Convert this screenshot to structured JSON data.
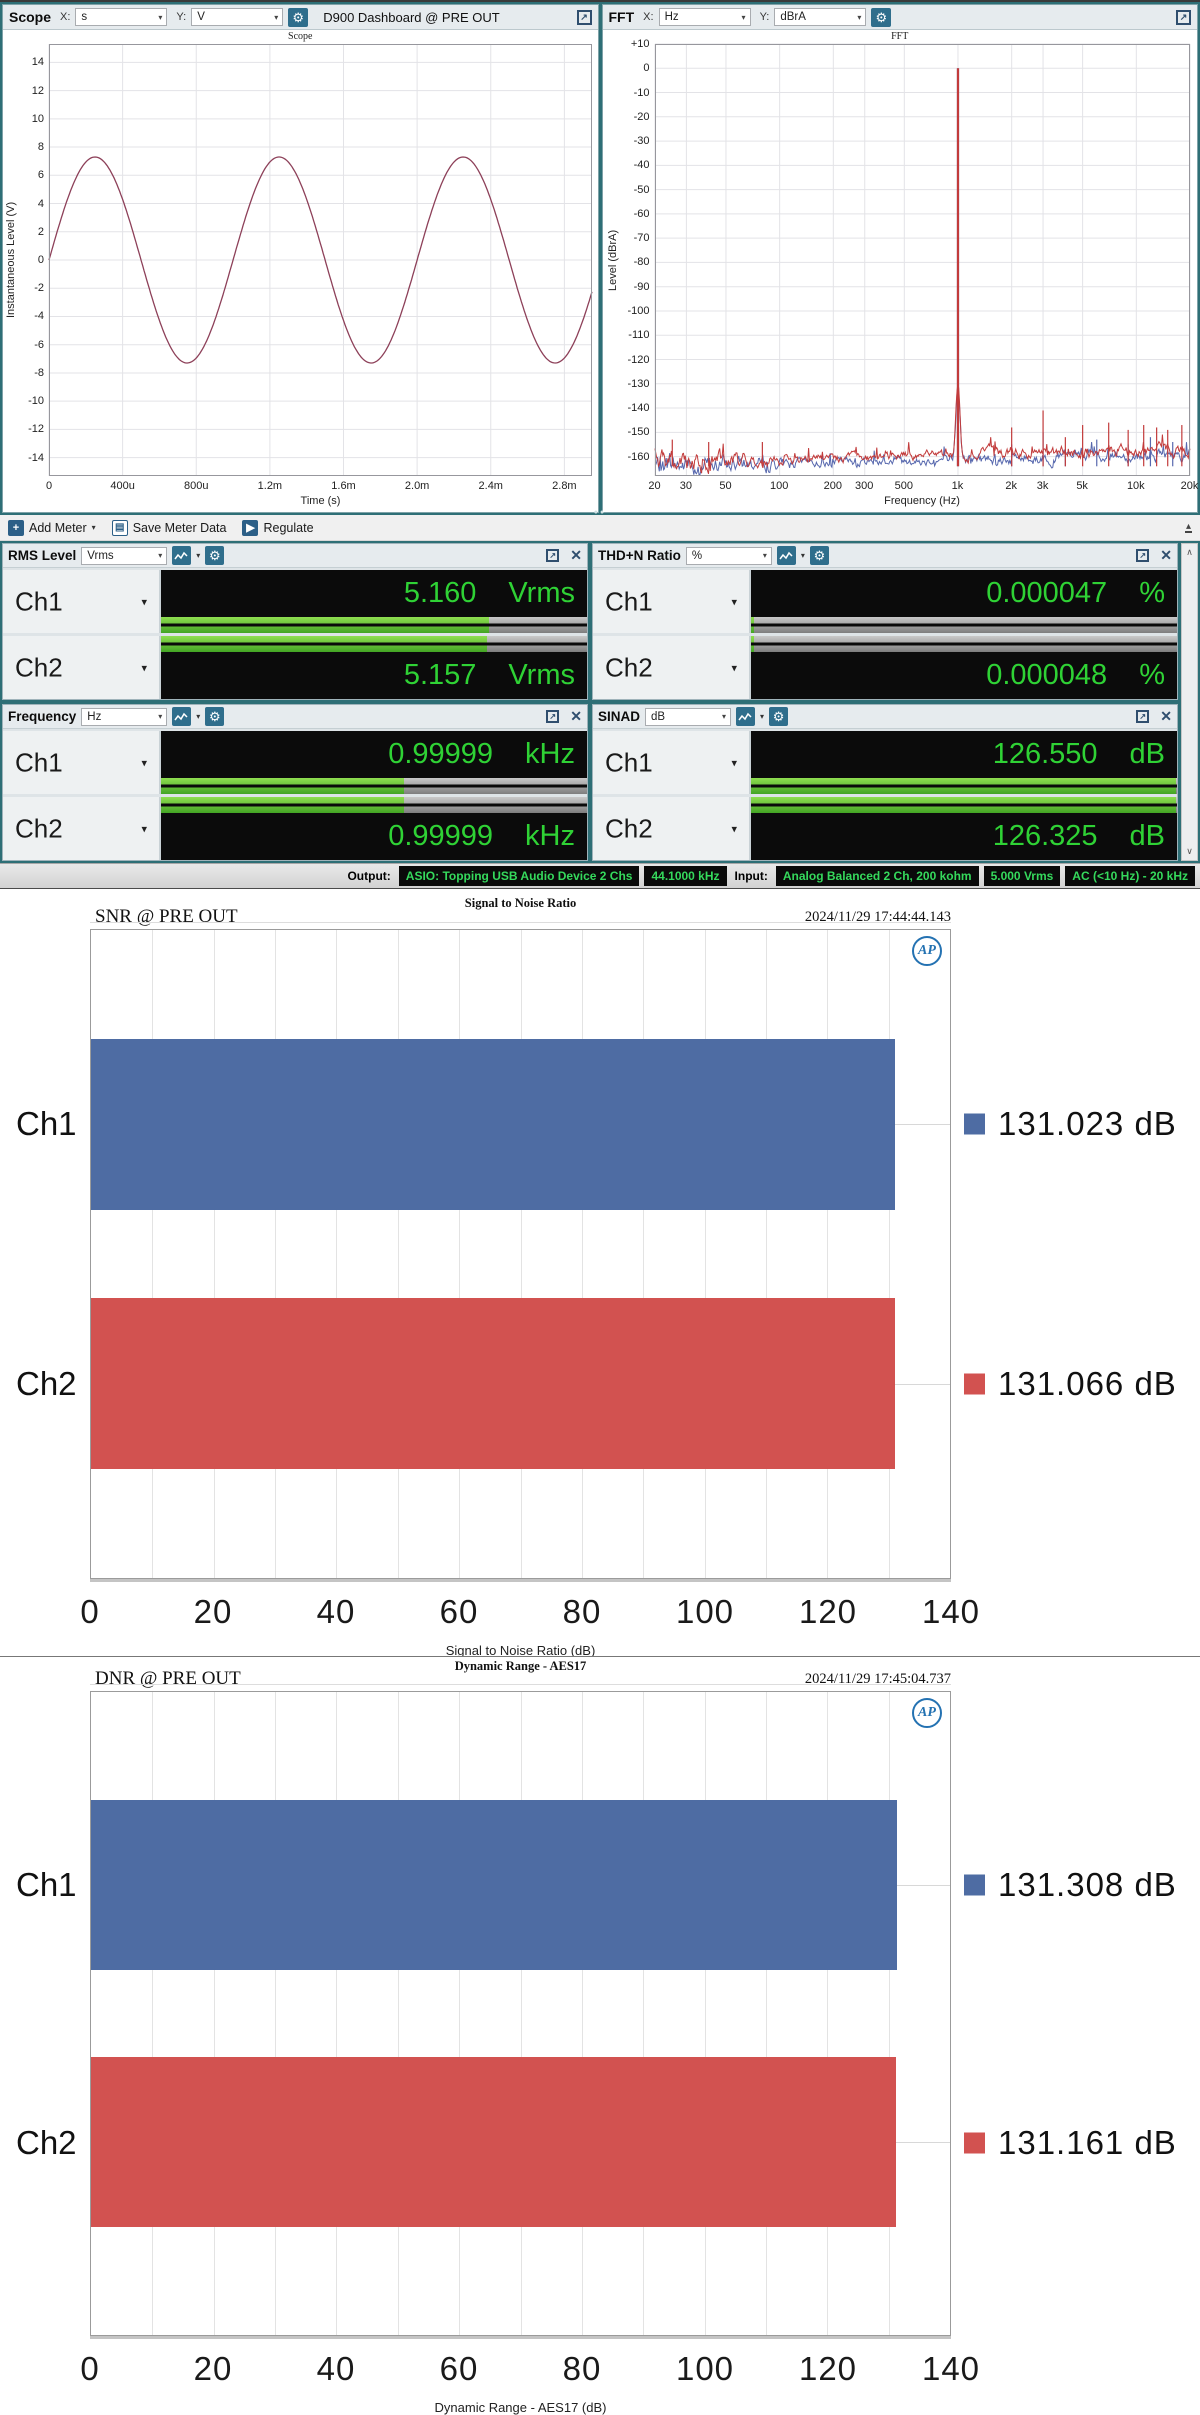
{
  "icons": {
    "gear": "⚙",
    "close": "✕",
    "dropdown_arrow": "▾",
    "expand_arrow": "↗",
    "scroll_up": "∧",
    "scroll_down": "∨",
    "add": "+",
    "play": "▶",
    "save": "▤",
    "pin": "▴",
    "splitter_dots": "●●"
  },
  "scope_panel": {
    "title": "Scope",
    "x_label": "X:",
    "x_unit": "s",
    "y_label": "Y:",
    "y_unit": "V",
    "doc_title": "D900 Dashboard @ PRE OUT"
  },
  "fft_panel": {
    "title": "FFT",
    "x_label": "X:",
    "x_unit": "Hz",
    "y_label": "Y:",
    "y_unit": "dBrA"
  },
  "meter_toolbar": {
    "add_meter_label": "Add Meter",
    "save_label": "Save Meter Data",
    "regulate_label": "Regulate"
  },
  "meters": [
    {
      "id": "rms-level",
      "title": "RMS Level",
      "unit": "Vrms",
      "channels": [
        {
          "name": "Ch1",
          "value": "5.160",
          "unit": "Vrms",
          "bar_pct": 77
        },
        {
          "name": "Ch2",
          "value": "5.157",
          "unit": "Vrms",
          "bar_pct": 76.5
        }
      ]
    },
    {
      "id": "thdn-ratio",
      "title": "THD+N Ratio",
      "unit": "%",
      "channels": [
        {
          "name": "Ch1",
          "value": "0.000047",
          "unit": "%",
          "bar_pct": 0.6
        },
        {
          "name": "Ch2",
          "value": "0.000048",
          "unit": "%",
          "bar_pct": 0.6
        }
      ]
    },
    {
      "id": "frequency",
      "title": "Frequency",
      "unit": "Hz",
      "channels": [
        {
          "name": "Ch1",
          "value": "0.99999",
          "unit": "kHz",
          "bar_pct": 57
        },
        {
          "name": "Ch2",
          "value": "0.99999",
          "unit": "kHz",
          "bar_pct": 57
        }
      ]
    },
    {
      "id": "sinad",
      "title": "SINAD",
      "unit": "dB",
      "channels": [
        {
          "name": "Ch1",
          "value": "126.550",
          "unit": "dB",
          "bar_pct": 99.8
        },
        {
          "name": "Ch2",
          "value": "126.325",
          "unit": "dB",
          "bar_pct": 99.8
        }
      ]
    }
  ],
  "status_bar": {
    "output_label": "Output:",
    "output_badges": [
      "ASIO: Topping USB Audio Device 2 Chs",
      "44.1000 kHz"
    ],
    "input_label": "Input:",
    "input_badges": [
      "Analog Balanced 2 Ch, 200 kohm",
      "5.000 Vrms",
      "AC (<10 Hz) - 20 kHz"
    ]
  },
  "chart_data": [
    {
      "id": "scope",
      "type": "line",
      "title": "Scope",
      "xlabel": "Time (s)",
      "ylabel": "Instantaneous Level (V)",
      "xlim": [
        0,
        0.00295
      ],
      "ylim": [
        -15.3,
        15.3
      ],
      "grid": true,
      "x_ticks": [
        [
          0,
          "0"
        ],
        [
          0.0004,
          "400u"
        ],
        [
          0.0008,
          "800u"
        ],
        [
          0.0012,
          "1.2m"
        ],
        [
          0.0016,
          "1.6m"
        ],
        [
          0.002,
          "2.0m"
        ],
        [
          0.0024,
          "2.4m"
        ],
        [
          0.0028,
          "2.8m"
        ]
      ],
      "y_ticks": [
        [
          14,
          "14"
        ],
        [
          12,
          "12"
        ],
        [
          10,
          "10"
        ],
        [
          8,
          "8"
        ],
        [
          6,
          "6"
        ],
        [
          4,
          "4"
        ],
        [
          2,
          "2"
        ],
        [
          0,
          "0"
        ],
        [
          -2,
          "-2"
        ],
        [
          -4,
          "-4"
        ],
        [
          -6,
          "-6"
        ],
        [
          -8,
          "-8"
        ],
        [
          -10,
          "-10"
        ],
        [
          -12,
          "-12"
        ],
        [
          -14,
          "-14"
        ]
      ],
      "series": [
        {
          "name": "Ch1",
          "color": "#8D4059",
          "waveform": "sine",
          "amplitude_v": 7.297,
          "frequency_hz": 1000,
          "phase_deg": 0
        }
      ]
    },
    {
      "id": "fft",
      "type": "line",
      "title": "FFT",
      "xlabel": "Frequency (Hz)",
      "ylabel": "Level (dBrA)",
      "xscale": "log",
      "xlim": [
        20,
        20000
      ],
      "ylim": [
        -168,
        10
      ],
      "grid": true,
      "x_ticks": [
        [
          20,
          "20"
        ],
        [
          30,
          "30"
        ],
        [
          50,
          "50"
        ],
        [
          100,
          "100"
        ],
        [
          200,
          "200"
        ],
        [
          300,
          "300"
        ],
        [
          500,
          "500"
        ],
        [
          1000,
          "1k"
        ],
        [
          2000,
          "2k"
        ],
        [
          3000,
          "3k"
        ],
        [
          5000,
          "5k"
        ],
        [
          10000,
          "10k"
        ],
        [
          20000,
          "20k"
        ]
      ],
      "y_ticks": [
        [
          10,
          "+10"
        ],
        [
          0,
          "0"
        ],
        [
          -10,
          "-10"
        ],
        [
          -20,
          "-20"
        ],
        [
          -30,
          "-30"
        ],
        [
          -40,
          "-40"
        ],
        [
          -50,
          "-50"
        ],
        [
          -60,
          "-60"
        ],
        [
          -70,
          "-70"
        ],
        [
          -80,
          "-80"
        ],
        [
          -90,
          "-90"
        ],
        [
          -100,
          "-100"
        ],
        [
          -110,
          "-110"
        ],
        [
          -120,
          "-120"
        ],
        [
          -130,
          "-130"
        ],
        [
          -140,
          "-140"
        ],
        [
          -150,
          "-150"
        ],
        [
          -160,
          "-160"
        ]
      ],
      "series": [
        {
          "name": "Ch1",
          "color": "#5768AE",
          "seed": 7,
          "noise_floor_db": [
            -164,
            -159
          ],
          "fundamental": [
            1000,
            0
          ],
          "spurs": [
            [
              2000,
              -155
            ],
            [
              3000,
              -150
            ],
            [
              4000,
              -157
            ],
            [
              6000,
              -153
            ],
            [
              9000,
              -155
            ],
            [
              12000,
              -152
            ],
            [
              16000,
              -154
            ]
          ]
        },
        {
          "name": "Ch2",
          "color": "#C23B3B",
          "seed": 91,
          "noise_floor_db": [
            -162.5,
            -157
          ],
          "fundamental": [
            1000,
            0
          ],
          "spurs": [
            [
              25,
              -153
            ],
            [
              40,
              -154
            ],
            [
              80,
              -154
            ],
            [
              2000,
              -148
            ],
            [
              3000,
              -141
            ],
            [
              4000,
              -152
            ],
            [
              5000,
              -147
            ],
            [
              7000,
              -146
            ],
            [
              9000,
              -149
            ],
            [
              11000,
              -147
            ],
            [
              13000,
              -148
            ],
            [
              15000,
              -149
            ],
            [
              18000,
              -147
            ]
          ]
        }
      ]
    },
    {
      "id": "snr",
      "type": "bar",
      "orientation": "horizontal",
      "title": "Signal to Noise Ratio",
      "corner_label": "SNR @ PRE OUT",
      "timestamp": "2024/11/29 17:44:44.143",
      "categories": [
        "Ch1",
        "Ch2"
      ],
      "values": [
        131.023,
        131.066
      ],
      "value_labels": [
        "131.023 dB",
        "131.066 dB"
      ],
      "bar_colors": [
        "#4E6CA3",
        "#D25250"
      ],
      "xlabel": "Signal to Noise Ratio (dB)",
      "xlim": [
        0,
        140
      ],
      "x_ticks": [
        0,
        20,
        40,
        60,
        80,
        100,
        120,
        140
      ],
      "grid_step": 10,
      "logo": "AP"
    },
    {
      "id": "dnr",
      "type": "bar",
      "orientation": "horizontal",
      "title": "Dynamic Range - AES17",
      "corner_label": "DNR @ PRE OUT",
      "timestamp": "2024/11/29 17:45:04.737",
      "categories": [
        "Ch1",
        "Ch2"
      ],
      "values": [
        131.308,
        131.161
      ],
      "value_labels": [
        "131.308 dB",
        "131.161 dB"
      ],
      "bar_colors": [
        "#4E6CA3",
        "#D25250"
      ],
      "xlabel": "Dynamic Range - AES17 (dB)",
      "xlim": [
        0,
        140
      ],
      "x_ticks": [
        0,
        20,
        40,
        60,
        80,
        100,
        120,
        140
      ],
      "grid_step": 10,
      "logo": "AP"
    }
  ]
}
